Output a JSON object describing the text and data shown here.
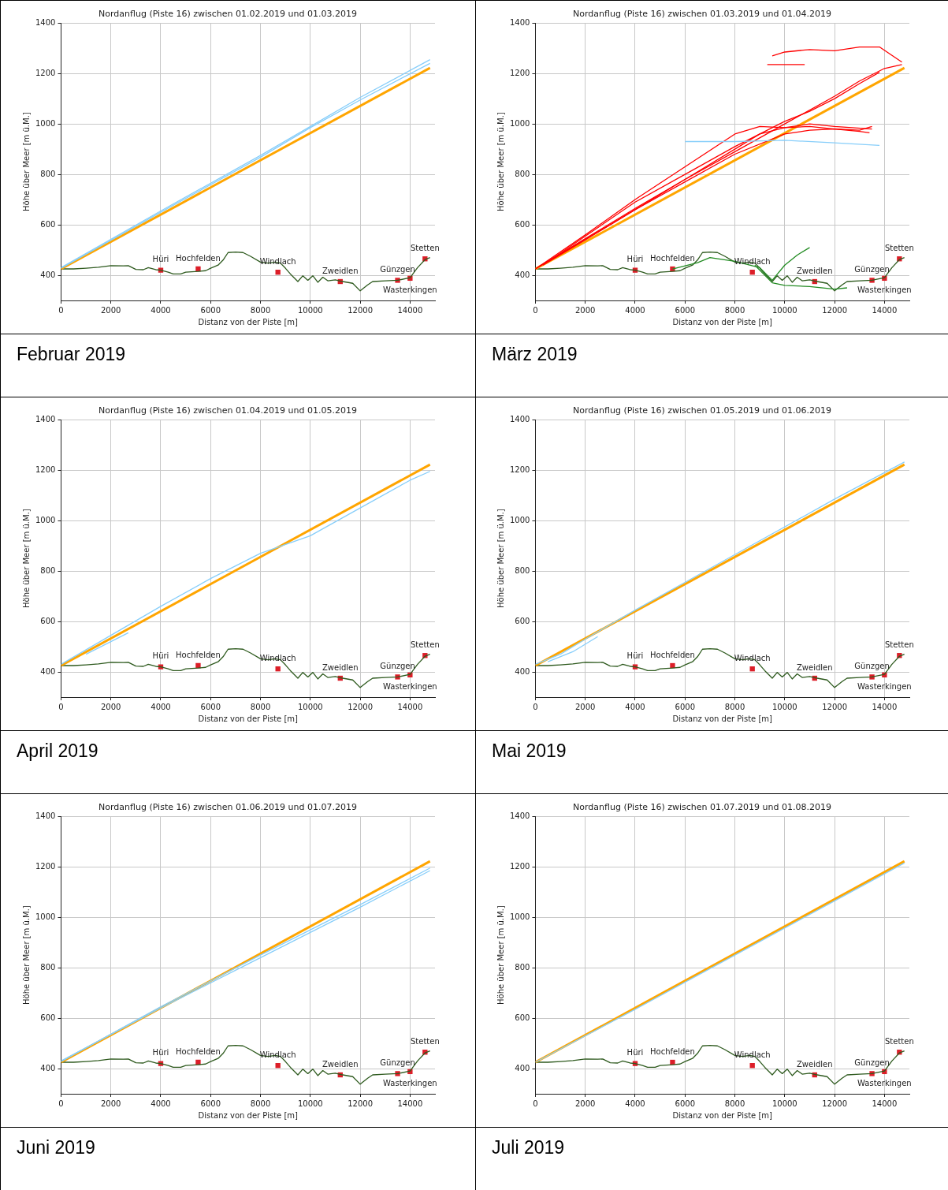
{
  "chart_data": [
    {
      "type": "line",
      "title": "Nordanflug (Piste 16) zwischen 01.02.2019 und 01.03.2019",
      "xlabel": "Distanz von der Piste [m]",
      "ylabel": "Höhe über Meer [m ü.M.]",
      "xlim": [
        0,
        15000
      ],
      "ylim": [
        300,
        1400
      ],
      "xticks": [
        0,
        2000,
        4000,
        6000,
        8000,
        10000,
        12000,
        14000
      ],
      "yticks": [
        400,
        600,
        800,
        1000,
        1200,
        1400
      ],
      "grid": true,
      "marker": "none",
      "annotations": [
        "Februar 2019"
      ],
      "series": [
        {
          "color": "#87cefa",
          "x": [
            0,
            4000,
            8000,
            10000,
            12000,
            14800
          ],
          "values": [
            430,
            655,
            875,
            990,
            1105,
            1255
          ]
        },
        {
          "color": "#87cefa",
          "x": [
            0,
            4000,
            8000,
            10000,
            12000,
            14800
          ],
          "values": [
            428,
            650,
            868,
            985,
            1095,
            1240
          ]
        },
        {
          "color": "#ffa500",
          "x": [
            0,
            14800
          ],
          "values": [
            425,
            1222
          ]
        },
        {
          "color": "#2e5a1e",
          "x": [
            0,
            500,
            1000,
            1500,
            2000,
            2500,
            2700,
            3000,
            3300,
            3500,
            3800,
            4000,
            4300,
            4500,
            4800,
            5000,
            5500,
            5800,
            6000,
            6300,
            6500,
            6700,
            7000,
            7300,
            7600,
            8000,
            8300,
            8600,
            8800,
            9000,
            9200,
            9500,
            9700,
            9900,
            10100,
            10300,
            10500,
            10700,
            11000,
            11300,
            11700,
            12000,
            12300,
            12500,
            13000,
            13500,
            14000,
            14300,
            14600,
            14800
          ],
          "values": [
            425,
            425,
            428,
            432,
            438,
            437,
            438,
            423,
            422,
            430,
            422,
            420,
            412,
            405,
            405,
            412,
            415,
            418,
            428,
            440,
            460,
            490,
            492,
            490,
            475,
            452,
            448,
            452,
            448,
            428,
            405,
            375,
            398,
            380,
            398,
            372,
            392,
            378,
            382,
            375,
            368,
            338,
            362,
            375,
            378,
            380,
            390,
            430,
            462,
            470
          ]
        },
        {
          "type": "scatter",
          "marker": "square",
          "color": "#dc1e28",
          "x": [
            4000,
            5500,
            8700,
            11200,
            13500,
            14000,
            14600
          ],
          "values": [
            420,
            425,
            412,
            375,
            380,
            388,
            465
          ],
          "value_labels": [
            "Hüri",
            "Hochfelden",
            "Windlach",
            "Zweidlen",
            "Günzgen",
            "Wasterkingen",
            "Stetten"
          ]
        }
      ]
    },
    {
      "type": "line",
      "title": "Nordanflug (Piste 16) zwischen 01.03.2019 und 01.04.2019",
      "xlabel": "Distanz von der Piste [m]",
      "ylabel": "Höhe über Meer [m ü.M.]",
      "xlim": [
        0,
        15000
      ],
      "ylim": [
        300,
        1400
      ],
      "xticks": [
        0,
        2000,
        4000,
        6000,
        8000,
        10000,
        12000,
        14000
      ],
      "yticks": [
        400,
        600,
        800,
        1000,
        1200,
        1400
      ],
      "grid": true,
      "marker": "none",
      "annotations": [
        "März 2019"
      ],
      "series": [
        {
          "color": "#87cefa",
          "x": [
            6000,
            8000,
            10000,
            12000,
            13800
          ],
          "values": [
            930,
            930,
            935,
            925,
            915
          ]
        },
        {
          "color": "#ff0000",
          "x": [
            0,
            2000,
            4000,
            6000,
            8000,
            9000,
            10000,
            11000,
            12000,
            13000,
            13500
          ],
          "values": [
            425,
            560,
            700,
            830,
            960,
            990,
            985,
            990,
            980,
            975,
            990
          ]
        },
        {
          "color": "#ff0000",
          "x": [
            300,
            2000,
            4000,
            6000,
            8000,
            10000,
            11000,
            12000,
            13000,
            13400
          ],
          "values": [
            440,
            540,
            660,
            770,
            880,
            960,
            975,
            980,
            970,
            965
          ]
        },
        {
          "color": "#ff0000",
          "x": [
            0,
            2000,
            4000,
            6000,
            8000,
            10000,
            12000,
            13000,
            14000,
            14700
          ],
          "values": [
            425,
            545,
            665,
            780,
            890,
            1000,
            1110,
            1170,
            1220,
            1235
          ]
        },
        {
          "color": "#ff0000",
          "x": [
            600,
            2000,
            4000,
            6000,
            8000,
            9000,
            10000,
            11000,
            12000,
            13000,
            13800
          ],
          "values": [
            460,
            555,
            690,
            800,
            910,
            960,
            1010,
            1050,
            1100,
            1160,
            1205
          ]
        },
        {
          "color": "#ff0000",
          "x": [
            150,
            3000,
            6000,
            8000,
            9000,
            10000,
            11000,
            12000,
            13500
          ],
          "values": [
            435,
            600,
            780,
            900,
            960,
            985,
            1000,
            990,
            980
          ]
        },
        {
          "color": "#ff0000",
          "x": [
            9300,
            10800
          ],
          "values": [
            1235,
            1235
          ]
        },
        {
          "color": "#ff0000",
          "x": [
            9500,
            10000,
            11000,
            12000,
            13000,
            13800,
            14700
          ],
          "values": [
            1270,
            1285,
            1295,
            1290,
            1305,
            1305,
            1245
          ]
        },
        {
          "color": "#ffa500",
          "x": [
            0,
            14800
          ],
          "values": [
            425,
            1222
          ]
        },
        {
          "color": "#228b22",
          "x": [
            5500,
            6500,
            7000,
            8000,
            9000,
            9500,
            10000,
            10500,
            11000
          ],
          "values": [
            425,
            450,
            470,
            455,
            430,
            380,
            440,
            480,
            510
          ]
        },
        {
          "color": "#228b22",
          "x": [
            8800,
            9500,
            10000,
            11000,
            12000,
            12500
          ],
          "values": [
            440,
            370,
            360,
            355,
            345,
            350
          ]
        },
        {
          "color": "#2e5a1e",
          "x": [
            0,
            500,
            1000,
            1500,
            2000,
            2500,
            2700,
            3000,
            3300,
            3500,
            3800,
            4000,
            4300,
            4500,
            4800,
            5000,
            5500,
            5800,
            6000,
            6300,
            6500,
            6700,
            7000,
            7300,
            7600,
            8000,
            8300,
            8600,
            8800,
            9000,
            9200,
            9500,
            9700,
            9900,
            10100,
            10300,
            10500,
            10700,
            11000,
            11300,
            11700,
            12000,
            12300,
            12500,
            13000,
            13500,
            14000,
            14300,
            14600,
            14800
          ],
          "values": [
            425,
            425,
            428,
            432,
            438,
            437,
            438,
            423,
            422,
            430,
            422,
            420,
            412,
            405,
            405,
            412,
            415,
            418,
            428,
            440,
            460,
            490,
            492,
            490,
            475,
            452,
            448,
            452,
            448,
            428,
            405,
            375,
            398,
            380,
            398,
            372,
            392,
            378,
            382,
            375,
            368,
            338,
            362,
            375,
            378,
            380,
            390,
            430,
            462,
            470
          ]
        },
        {
          "type": "scatter",
          "marker": "square",
          "color": "#dc1e28",
          "x": [
            4000,
            5500,
            8700,
            11200,
            13500,
            14000,
            14600
          ],
          "values": [
            420,
            425,
            412,
            375,
            380,
            388,
            465
          ],
          "value_labels": [
            "Hüri",
            "Hochfelden",
            "Windlach",
            "Zweidlen",
            "Günzgen",
            "Wasterkingen",
            "Stetten"
          ]
        }
      ]
    },
    {
      "type": "line",
      "title": "Nordanflug (Piste 16) zwischen 01.04.2019 und 01.05.2019",
      "xlabel": "Distanz von der Piste [m]",
      "ylabel": "Höhe über Meer [m ü.M.]",
      "xlim": [
        0,
        15000
      ],
      "ylim": [
        300,
        1400
      ],
      "xticks": [
        0,
        2000,
        4000,
        6000,
        8000,
        10000,
        12000,
        14000
      ],
      "yticks": [
        400,
        600,
        800,
        1000,
        1200,
        1400
      ],
      "grid": true,
      "marker": "none",
      "annotations": [
        "April 2019"
      ],
      "series": [
        {
          "color": "#87cefa",
          "x": [
            1000,
            2700
          ],
          "values": [
            470,
            555
          ]
        },
        {
          "color": "#87cefa",
          "x": [
            0,
            4000,
            6000,
            8000,
            10000,
            12000,
            14000,
            14800
          ],
          "values": [
            430,
            660,
            770,
            870,
            940,
            1050,
            1160,
            1195
          ]
        },
        {
          "color": "#ffa500",
          "x": [
            0,
            14800
          ],
          "values": [
            425,
            1222
          ]
        },
        {
          "color": "#2e5a1e",
          "x": [
            0,
            500,
            1000,
            1500,
            2000,
            2500,
            2700,
            3000,
            3300,
            3500,
            3800,
            4000,
            4300,
            4500,
            4800,
            5000,
            5500,
            5800,
            6000,
            6300,
            6500,
            6700,
            7000,
            7300,
            7600,
            8000,
            8300,
            8600,
            8800,
            9000,
            9200,
            9500,
            9700,
            9900,
            10100,
            10300,
            10500,
            10700,
            11000,
            11300,
            11700,
            12000,
            12300,
            12500,
            13000,
            13500,
            14000,
            14300,
            14600,
            14800
          ],
          "values": [
            425,
            425,
            428,
            432,
            438,
            437,
            438,
            423,
            422,
            430,
            422,
            420,
            412,
            405,
            405,
            412,
            415,
            418,
            428,
            440,
            460,
            490,
            492,
            490,
            475,
            452,
            448,
            452,
            448,
            428,
            405,
            375,
            398,
            380,
            398,
            372,
            392,
            378,
            382,
            375,
            368,
            338,
            362,
            375,
            378,
            380,
            390,
            430,
            462,
            470
          ]
        },
        {
          "type": "scatter",
          "marker": "square",
          "color": "#dc1e28",
          "x": [
            4000,
            5500,
            8700,
            11200,
            13500,
            14000,
            14600
          ],
          "values": [
            420,
            425,
            412,
            375,
            380,
            388,
            465
          ],
          "value_labels": [
            "Hüri",
            "Hochfelden",
            "Windlach",
            "Zweidlen",
            "Günzgen",
            "Wasterkingen",
            "Stetten"
          ]
        }
      ]
    },
    {
      "type": "line",
      "title": "Nordanflug (Piste 16) zwischen 01.05.2019 und 01.06.2019",
      "xlabel": "Distanz von der Piste [m]",
      "ylabel": "Höhe über Meer [m ü.M.]",
      "xlim": [
        0,
        15000
      ],
      "ylim": [
        300,
        1400
      ],
      "xticks": [
        0,
        2000,
        4000,
        6000,
        8000,
        10000,
        12000,
        14000
      ],
      "yticks": [
        400,
        600,
        800,
        1000,
        1200,
        1400
      ],
      "grid": true,
      "marker": "none",
      "annotations": [
        "Mai 2019"
      ],
      "series": [
        {
          "color": "#87cefa",
          "x": [
            0,
            1000,
            2000,
            4000,
            8000,
            12000,
            14800
          ],
          "values": [
            430,
            470,
            530,
            645,
            865,
            1085,
            1232
          ]
        },
        {
          "color": "#87cefa",
          "x": [
            500,
            1500,
            2500
          ],
          "values": [
            440,
            480,
            540
          ]
        },
        {
          "color": "#ffa500",
          "x": [
            0,
            14800
          ],
          "values": [
            425,
            1222
          ]
        },
        {
          "color": "#2e5a1e",
          "x": [
            0,
            500,
            1000,
            1500,
            2000,
            2500,
            2700,
            3000,
            3300,
            3500,
            3800,
            4000,
            4300,
            4500,
            4800,
            5000,
            5500,
            5800,
            6000,
            6300,
            6500,
            6700,
            7000,
            7300,
            7600,
            8000,
            8300,
            8600,
            8800,
            9000,
            9200,
            9500,
            9700,
            9900,
            10100,
            10300,
            10500,
            10700,
            11000,
            11300,
            11700,
            12000,
            12300,
            12500,
            13000,
            13500,
            14000,
            14300,
            14600,
            14800
          ],
          "values": [
            425,
            425,
            428,
            432,
            438,
            437,
            438,
            423,
            422,
            430,
            422,
            420,
            412,
            405,
            405,
            412,
            415,
            418,
            428,
            440,
            460,
            490,
            492,
            490,
            475,
            452,
            448,
            452,
            448,
            428,
            405,
            375,
            398,
            380,
            398,
            372,
            392,
            378,
            382,
            375,
            368,
            338,
            362,
            375,
            378,
            380,
            390,
            430,
            462,
            470
          ]
        },
        {
          "type": "scatter",
          "marker": "square",
          "color": "#dc1e28",
          "x": [
            4000,
            5500,
            8700,
            11200,
            13500,
            14000,
            14600
          ],
          "values": [
            420,
            425,
            412,
            375,
            380,
            388,
            465
          ],
          "value_labels": [
            "Hüri",
            "Hochfelden",
            "Windlach",
            "Zweidlen",
            "Günzgen",
            "Wasterkingen",
            "Stetten"
          ]
        }
      ]
    },
    {
      "type": "line",
      "title": "Nordanflug (Piste 16) zwischen 01.06.2019 und 01.07.2019",
      "xlabel": "Distanz von der Piste [m]",
      "ylabel": "Höhe über Meer [m ü.M.]",
      "xlim": [
        0,
        15000
      ],
      "ylim": [
        300,
        1400
      ],
      "xticks": [
        0,
        2000,
        4000,
        6000,
        8000,
        10000,
        12000,
        14000
      ],
      "yticks": [
        400,
        600,
        800,
        1000,
        1200,
        1400
      ],
      "grid": true,
      "marker": "none",
      "annotations": [
        "Juni 2019"
      ],
      "series": [
        {
          "color": "#87cefa",
          "x": [
            0,
            4000,
            8000,
            12000,
            14800
          ],
          "values": [
            430,
            640,
            840,
            1040,
            1185
          ]
        },
        {
          "color": "#87cefa",
          "x": [
            0,
            4000,
            8000,
            12000,
            14800
          ],
          "values": [
            428,
            645,
            850,
            1050,
            1195
          ]
        },
        {
          "color": "#ffa500",
          "x": [
            0,
            14800
          ],
          "values": [
            425,
            1222
          ]
        },
        {
          "color": "#2e5a1e",
          "x": [
            0,
            500,
            1000,
            1500,
            2000,
            2500,
            2700,
            3000,
            3300,
            3500,
            3800,
            4000,
            4300,
            4500,
            4800,
            5000,
            5500,
            5800,
            6000,
            6300,
            6500,
            6700,
            7000,
            7300,
            7600,
            8000,
            8300,
            8600,
            8800,
            9000,
            9200,
            9500,
            9700,
            9900,
            10100,
            10300,
            10500,
            10700,
            11000,
            11300,
            11700,
            12000,
            12300,
            12500,
            13000,
            13500,
            14000,
            14300,
            14600,
            14800
          ],
          "values": [
            425,
            425,
            428,
            432,
            438,
            437,
            438,
            423,
            422,
            430,
            422,
            420,
            412,
            405,
            405,
            412,
            415,
            418,
            428,
            440,
            460,
            490,
            492,
            490,
            475,
            452,
            448,
            452,
            448,
            428,
            405,
            375,
            398,
            380,
            398,
            372,
            392,
            378,
            382,
            375,
            368,
            338,
            362,
            375,
            378,
            380,
            390,
            430,
            462,
            470
          ]
        },
        {
          "type": "scatter",
          "marker": "square",
          "color": "#dc1e28",
          "x": [
            4000,
            5500,
            8700,
            11200,
            13500,
            14000,
            14600
          ],
          "values": [
            420,
            425,
            412,
            375,
            380,
            388,
            465
          ],
          "value_labels": [
            "Hüri",
            "Hochfelden",
            "Windlach",
            "Zweidlen",
            "Günzgen",
            "Wasterkingen",
            "Stetten"
          ]
        }
      ]
    },
    {
      "type": "line",
      "title": "Nordanflug (Piste 16) zwischen 01.07.2019 und 01.08.2019",
      "xlabel": "Distanz von der Piste [m]",
      "ylabel": "Höhe über Meer [m ü.M.]",
      "xlim": [
        0,
        15000
      ],
      "ylim": [
        300,
        1400
      ],
      "xticks": [
        0,
        2000,
        4000,
        6000,
        8000,
        10000,
        12000,
        14000
      ],
      "yticks": [
        400,
        600,
        800,
        1000,
        1200,
        1400
      ],
      "grid": true,
      "marker": "none",
      "annotations": [
        "Juli 2019"
      ],
      "series": [
        {
          "color": "#87cefa",
          "x": [
            0,
            4000,
            8000,
            12000,
            14800
          ],
          "values": [
            425,
            635,
            850,
            1065,
            1215
          ]
        },
        {
          "color": "#ffa500",
          "x": [
            0,
            14800
          ],
          "values": [
            425,
            1222
          ]
        },
        {
          "color": "#2e5a1e",
          "x": [
            0,
            500,
            1000,
            1500,
            2000,
            2500,
            2700,
            3000,
            3300,
            3500,
            3800,
            4000,
            4300,
            4500,
            4800,
            5000,
            5500,
            5800,
            6000,
            6300,
            6500,
            6700,
            7000,
            7300,
            7600,
            8000,
            8300,
            8600,
            8800,
            9000,
            9200,
            9500,
            9700,
            9900,
            10100,
            10300,
            10500,
            10700,
            11000,
            11300,
            11700,
            12000,
            12300,
            12500,
            13000,
            13500,
            14000,
            14300,
            14600,
            14800
          ],
          "values": [
            425,
            425,
            428,
            432,
            438,
            437,
            438,
            423,
            422,
            430,
            422,
            420,
            412,
            405,
            405,
            412,
            415,
            418,
            428,
            440,
            460,
            490,
            492,
            490,
            475,
            452,
            448,
            452,
            448,
            428,
            405,
            375,
            398,
            380,
            398,
            372,
            392,
            378,
            382,
            375,
            368,
            338,
            362,
            375,
            378,
            380,
            390,
            430,
            462,
            470
          ]
        },
        {
          "type": "scatter",
          "marker": "square",
          "color": "#dc1e28",
          "x": [
            4000,
            5500,
            8700,
            11200,
            13500,
            14000,
            14600
          ],
          "values": [
            420,
            425,
            412,
            375,
            380,
            388,
            465
          ],
          "value_labels": [
            "Hüri",
            "Hochfelden",
            "Windlach",
            "Zweidlen",
            "Günzgen",
            "Wasterkingen",
            "Stetten"
          ]
        }
      ]
    }
  ]
}
